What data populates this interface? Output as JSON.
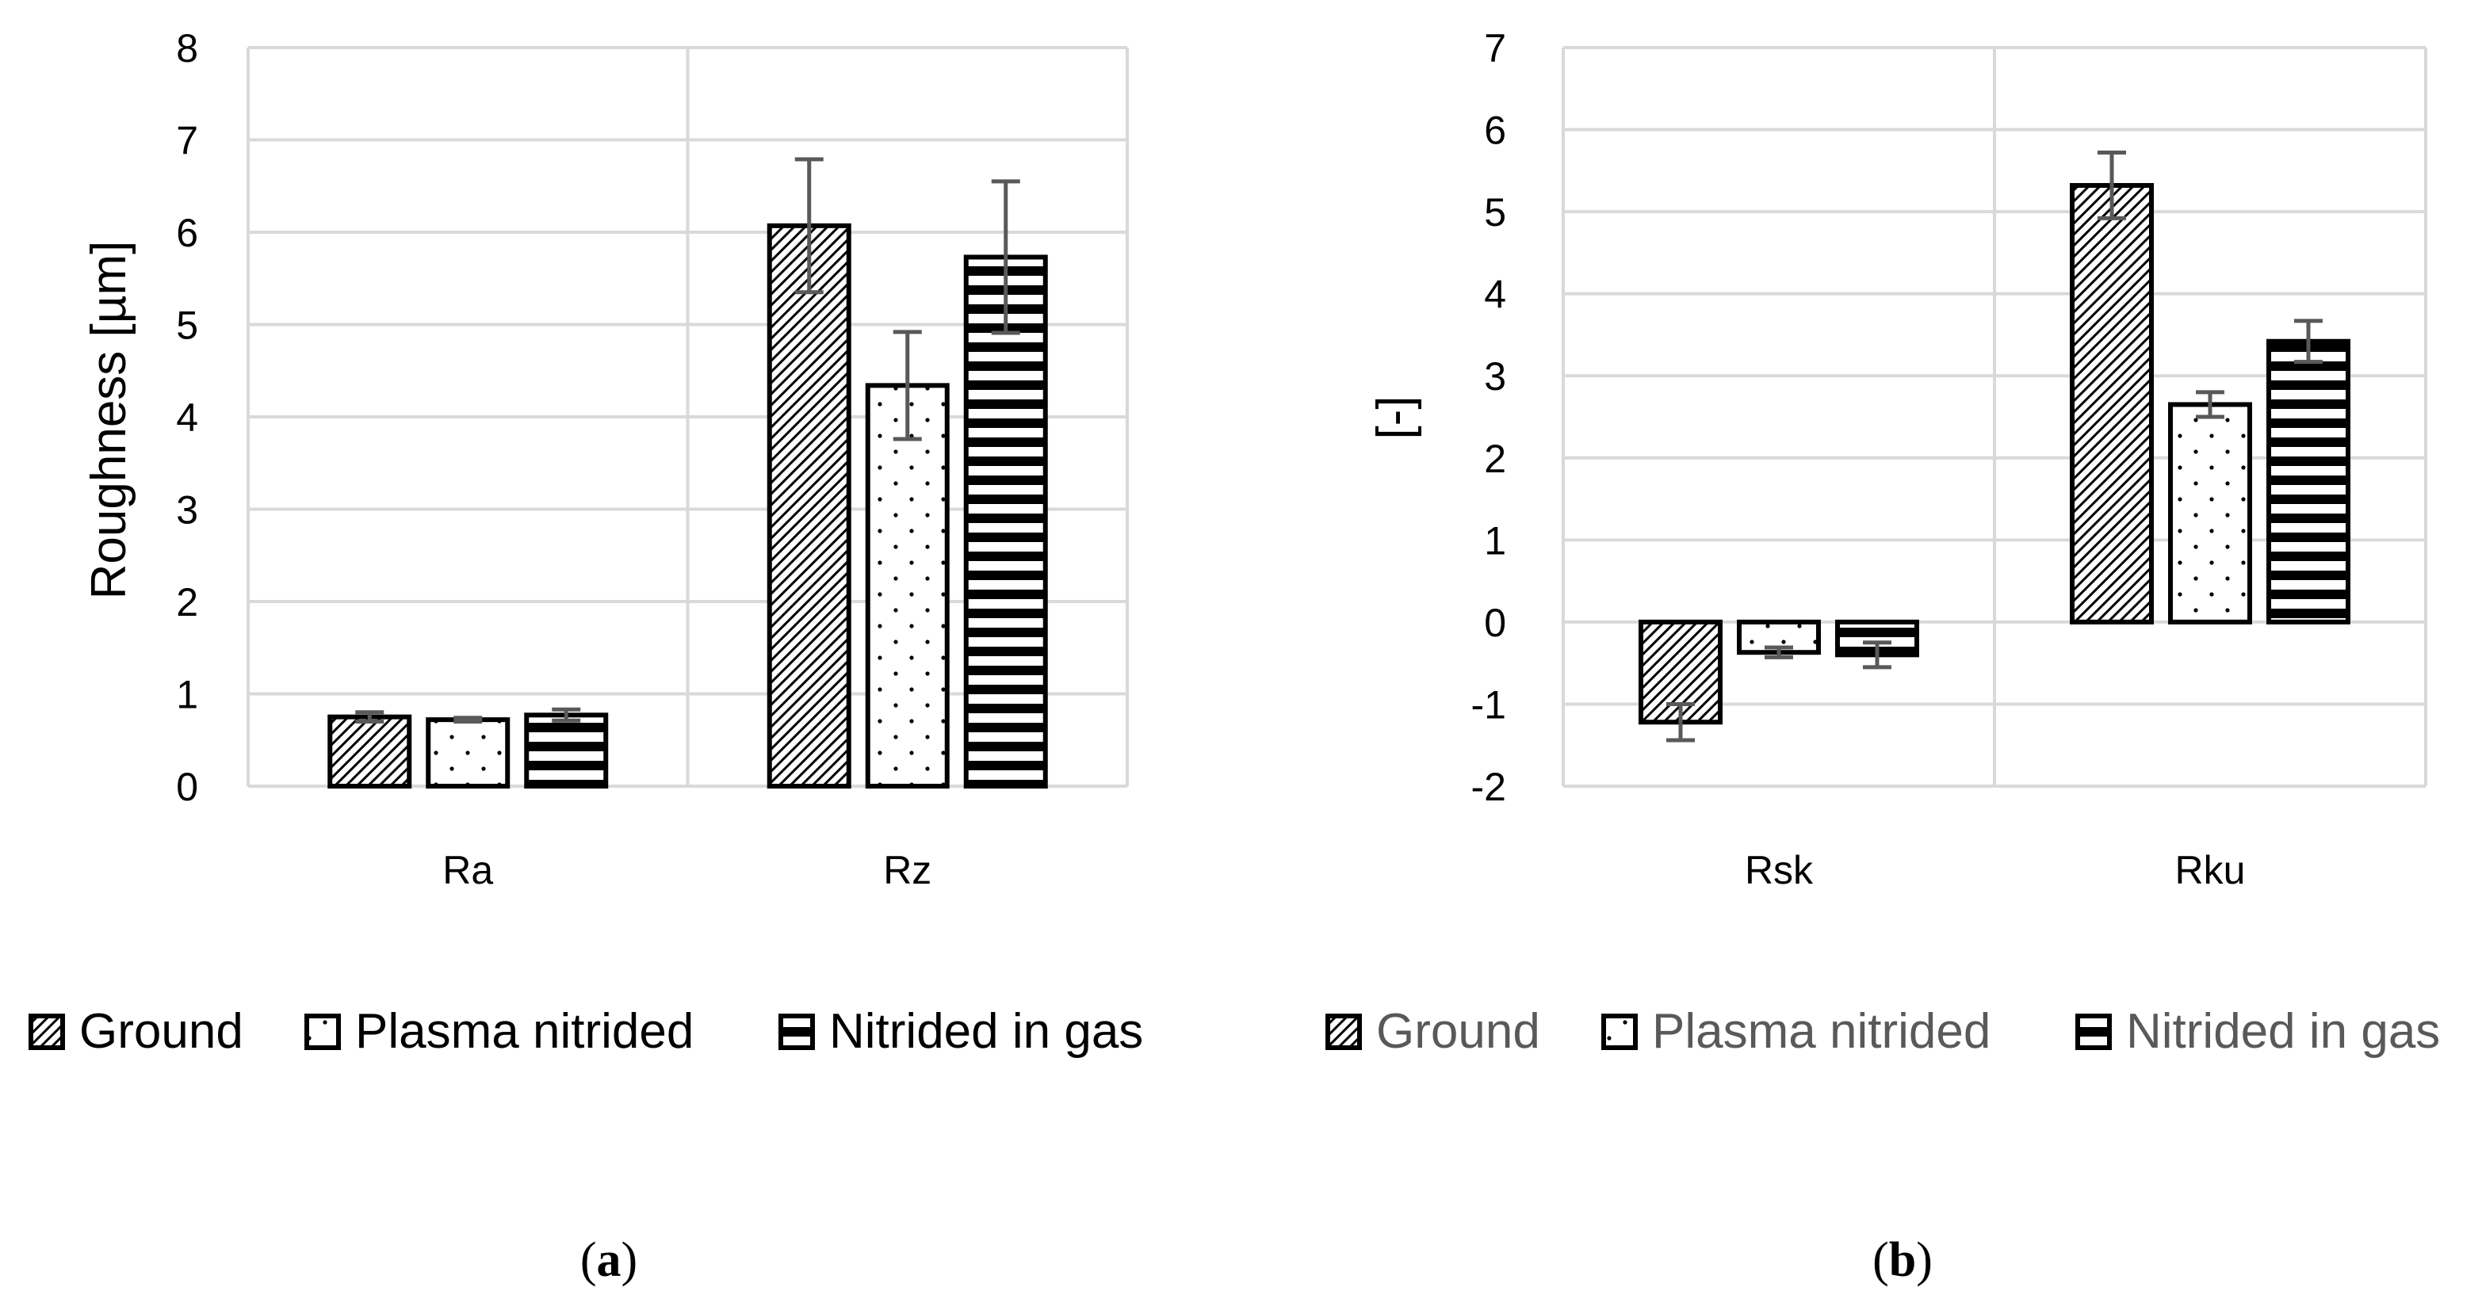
{
  "chart_data": [
    {
      "type": "bar",
      "panel": "a",
      "title": "",
      "caption_letter": "a",
      "xlabel": "",
      "ylabel": "Roughness [µm]",
      "ylim": [
        0,
        8
      ],
      "yticks": [
        "0",
        "1",
        "2",
        "3",
        "4",
        "5",
        "6",
        "7",
        "8"
      ],
      "grid": true,
      "legend_position": "bottom",
      "categories": [
        "Ra",
        "Rz"
      ],
      "series": [
        {
          "name": "Ground",
          "pattern": "diagonal",
          "values": [
            0.75,
            6.07
          ],
          "errors": [
            0.05,
            0.72
          ]
        },
        {
          "name": "Plasma nitrided",
          "pattern": "dots",
          "values": [
            0.72,
            4.34
          ],
          "errors": [
            0.02,
            0.58
          ]
        },
        {
          "name": "Nitrided in gas",
          "pattern": "horizontal",
          "values": [
            0.77,
            5.73
          ],
          "errors": [
            0.06,
            0.82
          ]
        }
      ],
      "legend_color": "#000000"
    },
    {
      "type": "bar",
      "panel": "b",
      "title": "",
      "caption_letter": "b",
      "xlabel": "",
      "ylabel": "[-]",
      "ylim": [
        -2,
        7
      ],
      "yticks": [
        "-2",
        "-1",
        "0",
        "1",
        "2",
        "3",
        "4",
        "5",
        "6",
        "7"
      ],
      "grid": true,
      "legend_position": "bottom",
      "categories": [
        "Rsk",
        "Rku"
      ],
      "series": [
        {
          "name": "Ground",
          "pattern": "diagonal",
          "values": [
            -1.22,
            5.32
          ],
          "errors": [
            0.22,
            0.4
          ]
        },
        {
          "name": "Plasma nitrided",
          "pattern": "dots",
          "values": [
            -0.37,
            2.65
          ],
          "errors": [
            0.06,
            0.15
          ]
        },
        {
          "name": "Nitrided in gas",
          "pattern": "horizontal",
          "values": [
            -0.4,
            3.42
          ],
          "errors": [
            0.15,
            0.25
          ]
        }
      ],
      "legend_color": "#595959"
    }
  ],
  "colors": {
    "grid": "#d9d9d9",
    "bar_stroke": "#000000",
    "error_bar": "#595959"
  }
}
